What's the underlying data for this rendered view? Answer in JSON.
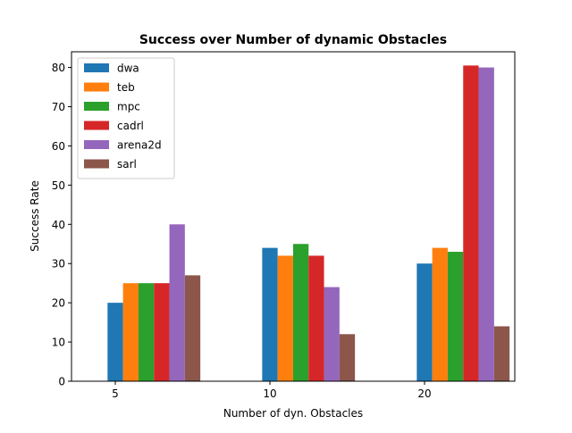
{
  "chart_data": {
    "type": "bar",
    "title": "Success over Number of dynamic Obstacles",
    "xlabel": "Number of dyn. Obstacles",
    "ylabel": "Success Rate",
    "categories": [
      "5",
      "10",
      "20"
    ],
    "ylim": [
      0,
      84
    ],
    "yticks": [
      0,
      10,
      20,
      30,
      40,
      50,
      60,
      70,
      80
    ],
    "grid": false,
    "legend_position": "top-left",
    "series": [
      {
        "name": "dwa",
        "color": "#1f77b4",
        "values": [
          20,
          34,
          30
        ]
      },
      {
        "name": "teb",
        "color": "#ff7f0e",
        "values": [
          25,
          32,
          34
        ]
      },
      {
        "name": "mpc",
        "color": "#2ca02c",
        "values": [
          25,
          35,
          33
        ]
      },
      {
        "name": "cadrl",
        "color": "#d62728",
        "values": [
          25,
          32,
          80.5
        ]
      },
      {
        "name": "arena2d",
        "color": "#9467bd",
        "values": [
          40,
          24,
          80
        ]
      },
      {
        "name": "sarl",
        "color": "#8c564b",
        "values": [
          27,
          12,
          14
        ]
      }
    ]
  }
}
